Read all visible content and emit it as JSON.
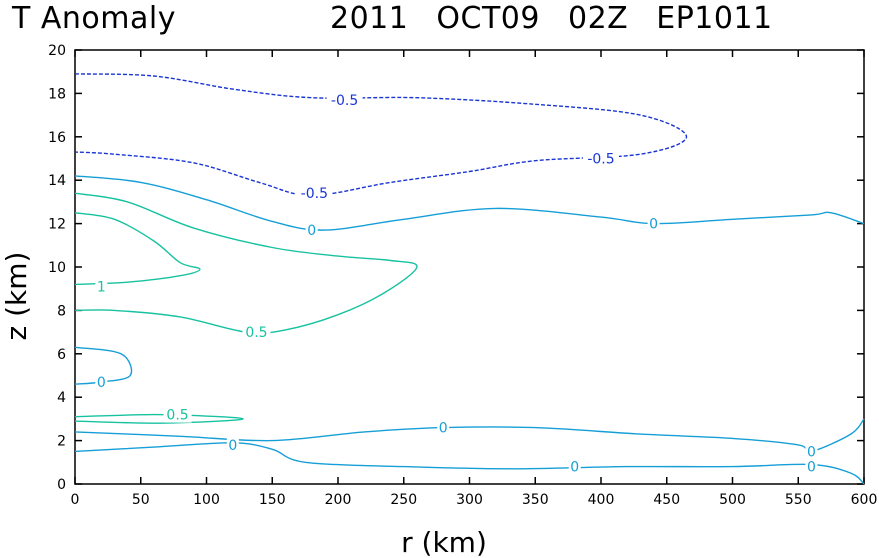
{
  "header": {
    "left": "T Anomaly",
    "right": "2011 OCT09 02Z EP1011"
  },
  "chart_data": {
    "type": "contour",
    "xlabel": "r (km)",
    "ylabel": "z (km)",
    "xlim": [
      0,
      600
    ],
    "ylim": [
      0,
      20
    ],
    "xticks": [
      0,
      50,
      100,
      150,
      200,
      250,
      300,
      350,
      400,
      450,
      500,
      550,
      600
    ],
    "yticks": [
      0,
      2,
      4,
      6,
      8,
      10,
      12,
      14,
      16,
      18,
      20
    ],
    "colors": {
      "neg": "#1a35d4",
      "zero": "#169fd6",
      "pos": "#17c2a0"
    },
    "contours": [
      {
        "level": -0.5,
        "label": "-0.5",
        "style": "dashed",
        "color": "neg",
        "points": [
          [
            0,
            18.9
          ],
          [
            60,
            18.8
          ],
          [
            120,
            18.2
          ],
          [
            180,
            17.8
          ],
          [
            260,
            17.8
          ],
          [
            350,
            17.5
          ],
          [
            430,
            17.0
          ],
          [
            465,
            16.0
          ],
          [
            430,
            15.2
          ],
          [
            350,
            14.9
          ],
          [
            300,
            14.4
          ],
          [
            240,
            13.9
          ],
          [
            180,
            13.3
          ],
          [
            140,
            13.9
          ],
          [
            90,
            14.8
          ],
          [
            30,
            15.2
          ],
          [
            0,
            15.3
          ]
        ],
        "labels": [
          [
            205,
            17.7,
            "-0.5"
          ],
          [
            400,
            15.0,
            "-0.5"
          ],
          [
            182,
            13.4,
            "-0.5"
          ]
        ]
      },
      {
        "level": 0,
        "label": "0",
        "style": "solid",
        "color": "zero",
        "points": [
          [
            0,
            14.2
          ],
          [
            50,
            13.9
          ],
          [
            100,
            13.1
          ],
          [
            150,
            12.1
          ],
          [
            190,
            11.7
          ],
          [
            250,
            12.2
          ],
          [
            320,
            12.7
          ],
          [
            400,
            12.3
          ],
          [
            440,
            12.0
          ],
          [
            500,
            12.2
          ],
          [
            560,
            12.4
          ],
          [
            575,
            12.5
          ],
          [
            600,
            12.0
          ]
        ],
        "labels": [
          [
            180,
            11.7,
            "0"
          ],
          [
            440,
            12.0,
            "0"
          ]
        ]
      },
      {
        "level": 1,
        "label": "1",
        "style": "solid",
        "color": "pos",
        "points": [
          [
            0,
            12.5
          ],
          [
            30,
            12.2
          ],
          [
            60,
            11.2
          ],
          [
            80,
            10.2
          ],
          [
            95,
            9.9
          ],
          [
            80,
            9.6
          ],
          [
            40,
            9.3
          ],
          [
            0,
            9.2
          ]
        ],
        "labels": [
          [
            20,
            9.1,
            "1"
          ]
        ]
      },
      {
        "level": 0.5,
        "label": "0.5",
        "style": "solid",
        "color": "pos",
        "points": [
          [
            0,
            13.4
          ],
          [
            40,
            13.0
          ],
          [
            90,
            11.8
          ],
          [
            150,
            10.9
          ],
          [
            200,
            10.5
          ],
          [
            240,
            10.3
          ],
          [
            260,
            10.0
          ],
          [
            235,
            8.8
          ],
          [
            200,
            7.8
          ],
          [
            160,
            7.1
          ],
          [
            130,
            7.0
          ],
          [
            80,
            7.7
          ],
          [
            30,
            8.0
          ],
          [
            0,
            8.0
          ]
        ],
        "labels": [
          [
            138,
            7.0,
            "0.5"
          ]
        ]
      },
      {
        "level": 0,
        "label": "0",
        "style": "solid",
        "color": "zero",
        "points": [
          [
            0,
            6.3
          ],
          [
            35,
            6.0
          ],
          [
            42,
            5.0
          ],
          [
            20,
            4.7
          ],
          [
            0,
            4.6
          ]
        ],
        "labels": [
          [
            20,
            4.7,
            "0"
          ]
        ]
      },
      {
        "level": 0.5,
        "label": "0.5",
        "style": "solid",
        "color": "pos",
        "points": [
          [
            0,
            3.1
          ],
          [
            60,
            3.2
          ],
          [
            110,
            3.1
          ],
          [
            128,
            3.0
          ],
          [
            110,
            2.9
          ],
          [
            60,
            2.8
          ],
          [
            0,
            2.9
          ]
        ],
        "labels": [
          [
            78,
            3.2,
            "0.5"
          ]
        ]
      },
      {
        "level": 0,
        "label": "0",
        "style": "solid",
        "color": "zero",
        "points": [
          [
            0,
            2.4
          ],
          [
            80,
            2.2
          ],
          [
            150,
            2.0
          ],
          [
            220,
            2.4
          ],
          [
            280,
            2.6
          ],
          [
            350,
            2.6
          ],
          [
            430,
            2.3
          ],
          [
            500,
            2.1
          ],
          [
            550,
            1.8
          ],
          [
            560,
            1.5
          ],
          [
            590,
            2.3
          ],
          [
            600,
            3.0
          ]
        ],
        "labels": [
          [
            280,
            2.6,
            "0"
          ],
          [
            560,
            1.5,
            "0"
          ]
        ]
      },
      {
        "level": 0,
        "label": "0",
        "style": "solid",
        "color": "zero",
        "points": [
          [
            0,
            1.5
          ],
          [
            60,
            1.7
          ],
          [
            120,
            1.9
          ],
          [
            150,
            1.6
          ],
          [
            175,
            1.0
          ],
          [
            250,
            0.8
          ],
          [
            330,
            0.7
          ],
          [
            420,
            0.8
          ],
          [
            500,
            0.8
          ],
          [
            560,
            0.9
          ],
          [
            590,
            0.5
          ],
          [
            600,
            0.0
          ]
        ],
        "labels": [
          [
            120,
            1.8,
            "0"
          ],
          [
            380,
            0.8,
            "0"
          ],
          [
            560,
            0.8,
            "0"
          ]
        ]
      }
    ]
  }
}
